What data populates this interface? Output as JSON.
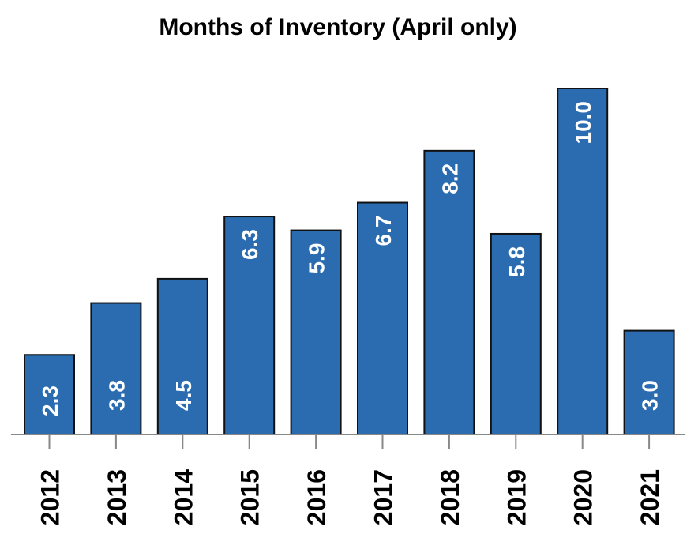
{
  "chart_data": {
    "type": "bar",
    "title": "Months of Inventory (April only)",
    "xlabel": "",
    "ylabel": "",
    "categories": [
      "2012",
      "2013",
      "2014",
      "2015",
      "2016",
      "2017",
      "2018",
      "2019",
      "2020",
      "2021"
    ],
    "values": [
      2.3,
      3.8,
      4.5,
      6.3,
      5.9,
      6.7,
      8.2,
      5.8,
      10.0,
      3.0
    ],
    "value_labels": [
      "2.3",
      "3.8",
      "4.5",
      "6.3",
      "5.9",
      "6.7",
      "8.2",
      "5.8",
      "10.0",
      "3.0"
    ],
    "ylim": [
      0,
      10.5
    ],
    "grid": false,
    "legend": "none",
    "colors": {
      "bar": "#2b6cb0",
      "label_inside": "#ffffff",
      "label_outside": "#000000",
      "axis": "#888888"
    }
  }
}
